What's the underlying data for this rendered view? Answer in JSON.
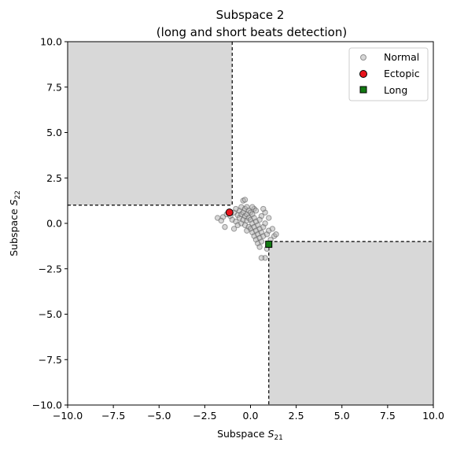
{
  "chart_data": {
    "type": "scatter",
    "title_line1": "Subspace 2",
    "title_line2": "(long and short beats detection)",
    "xlabel": {
      "text": "Subspace ",
      "math": "S",
      "sub": "21"
    },
    "ylabel": {
      "text": "Subspace ",
      "math": "S",
      "sub": "22"
    },
    "xlim": [
      -10,
      10
    ],
    "ylim": [
      -10,
      10
    ],
    "xticks": [
      -10,
      -7.5,
      -5,
      -2.5,
      0,
      2.5,
      5,
      7.5,
      10
    ],
    "yticks": [
      -10,
      -7.5,
      -5,
      -2.5,
      0,
      2.5,
      5,
      7.5,
      10
    ],
    "xtick_labels": [
      "−10.0",
      "−7.5",
      "−5.0",
      "−2.5",
      "0.0",
      "2.5",
      "5.0",
      "7.5",
      "10.0"
    ],
    "ytick_labels": [
      "−10.0",
      "−7.5",
      "−5.0",
      "−2.5",
      "0.0",
      "2.5",
      "5.0",
      "7.5",
      "10.0"
    ],
    "grid": false,
    "legend_position": "top-right",
    "regions": [
      {
        "x": [
          -10,
          -1
        ],
        "y": [
          1,
          10
        ],
        "fill": "#d8d8d8"
      },
      {
        "x": [
          1,
          10
        ],
        "y": [
          -10,
          -1
        ],
        "fill": "#d8d8d8"
      }
    ],
    "series": [
      {
        "name": "Normal",
        "marker": "circle",
        "color": "#b0b0b0",
        "edge": "#555555",
        "points": [
          [
            -1.8,
            0.3
          ],
          [
            -1.5,
            0.35
          ],
          [
            -1.3,
            0.5
          ],
          [
            -1.1,
            0.4
          ],
          [
            -1.0,
            0.2
          ],
          [
            -0.9,
            0.6
          ],
          [
            -0.9,
            -0.3
          ],
          [
            -0.8,
            0.1
          ],
          [
            -0.7,
            0.45
          ],
          [
            -0.7,
            -0.1
          ],
          [
            -0.6,
            0.7
          ],
          [
            -0.6,
            0.3
          ],
          [
            -0.5,
            0.9
          ],
          [
            -0.5,
            0.5
          ],
          [
            -0.5,
            0.0
          ],
          [
            -0.4,
            1.25
          ],
          [
            -0.4,
            0.6
          ],
          [
            -0.4,
            0.2
          ],
          [
            -0.3,
            1.3
          ],
          [
            -0.3,
            0.8
          ],
          [
            -0.3,
            0.4
          ],
          [
            -0.3,
            -0.1
          ],
          [
            -0.2,
            0.9
          ],
          [
            -0.2,
            0.5
          ],
          [
            -0.2,
            0.15
          ],
          [
            -0.1,
            0.7
          ],
          [
            -0.1,
            0.3
          ],
          [
            -0.1,
            -0.2
          ],
          [
            0.0,
            0.6
          ],
          [
            0.0,
            0.2
          ],
          [
            0.0,
            -0.3
          ],
          [
            0.1,
            0.5
          ],
          [
            0.1,
            0.0
          ],
          [
            0.1,
            -0.5
          ],
          [
            0.2,
            0.3
          ],
          [
            0.2,
            -0.2
          ],
          [
            0.2,
            -0.7
          ],
          [
            0.3,
            0.1
          ],
          [
            0.3,
            -0.4
          ],
          [
            0.3,
            -0.9
          ],
          [
            0.4,
            -0.1
          ],
          [
            0.4,
            -0.6
          ],
          [
            0.4,
            -1.1
          ],
          [
            0.5,
            -0.3
          ],
          [
            0.5,
            -0.8
          ],
          [
            0.5,
            -1.3
          ],
          [
            0.6,
            0.4
          ],
          [
            0.6,
            -0.5
          ],
          [
            0.6,
            -1.0
          ],
          [
            0.7,
            -0.2
          ],
          [
            0.7,
            -0.7
          ],
          [
            0.8,
            0.0
          ],
          [
            0.8,
            0.6
          ],
          [
            0.8,
            -1.9
          ],
          [
            0.9,
            -0.6
          ],
          [
            0.9,
            -1.4
          ],
          [
            1.0,
            0.3
          ],
          [
            1.0,
            -0.4
          ],
          [
            1.1,
            -0.9
          ],
          [
            1.2,
            -0.3
          ],
          [
            1.3,
            -0.7
          ],
          [
            1.4,
            -0.6
          ],
          [
            -1.6,
            0.15
          ],
          [
            -1.4,
            -0.2
          ],
          [
            0.6,
            -1.9
          ],
          [
            0.2,
            0.8
          ],
          [
            -0.8,
            0.8
          ],
          [
            0.5,
            0.2
          ],
          [
            0.3,
            0.7
          ],
          [
            0.7,
            0.8
          ],
          [
            -0.2,
            -0.4
          ],
          [
            0.1,
            0.9
          ]
        ]
      },
      {
        "name": "Ectopic",
        "marker": "circle",
        "color": "#e8141c",
        "edge": "#000000",
        "points": [
          [
            -1.15,
            0.6
          ]
        ]
      },
      {
        "name": "Long",
        "marker": "square",
        "color": "#127a12",
        "edge": "#000000",
        "points": [
          [
            1.0,
            -1.15
          ]
        ]
      }
    ]
  }
}
